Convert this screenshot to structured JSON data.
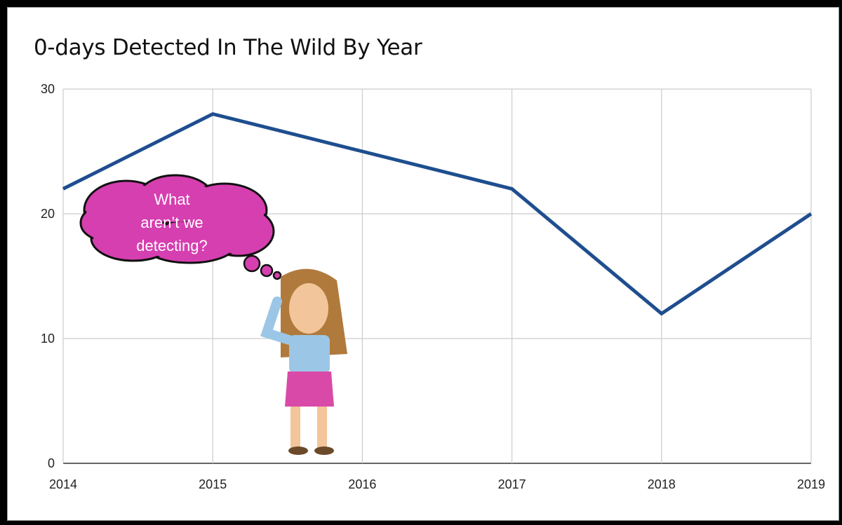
{
  "chart_data": {
    "type": "line",
    "title": "0-days Detected In The Wild By Year",
    "xlabel": "",
    "ylabel": "",
    "categories": [
      "2014",
      "2015",
      "2016",
      "2017",
      "2018",
      "2019"
    ],
    "series": [
      {
        "values": [
          22,
          28,
          25,
          22,
          12,
          20
        ],
        "color": "#1f4e8f"
      }
    ],
    "ylim": [
      0,
      30
    ],
    "yticks": [
      "0",
      "10",
      "20",
      "30"
    ],
    "grid": true,
    "legend": "none"
  },
  "annotation": {
    "thought_bubble_lines": [
      "What",
      "aren’t we",
      "detecting?"
    ],
    "bubble_color": "#d63fb0"
  }
}
